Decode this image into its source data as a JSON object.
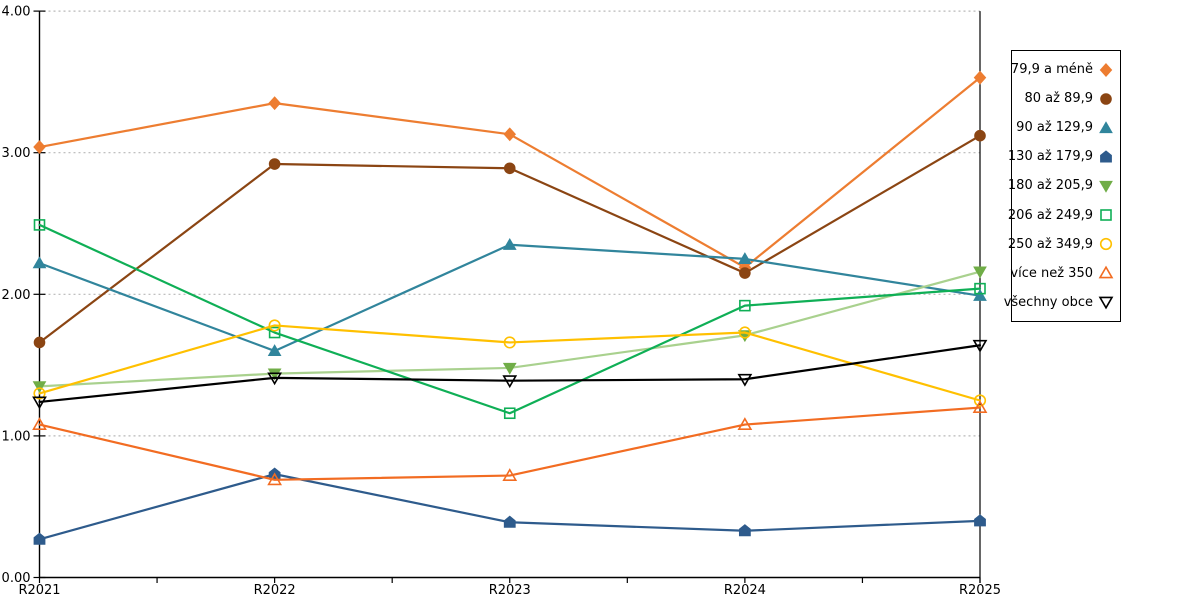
{
  "chart_data": {
    "type": "line",
    "title": "",
    "xlabel": "",
    "ylabel": "",
    "categories": [
      "R2021",
      "R2022",
      "R2023",
      "R2024",
      "R2025"
    ],
    "y_tick_labels": [
      "0.00",
      "1.00",
      "2.00",
      "3.00",
      "4.00"
    ],
    "ylim": [
      0,
      4
    ],
    "grid": "horizontal-dashed",
    "gridline_color": "#b8b8b8",
    "axis_color": "#000000",
    "legend_position": "right",
    "series": [
      {
        "name": "79,9 a méně",
        "marker": "diamond",
        "fill": "filled",
        "color": "#ED7D31",
        "values": [
          3.04,
          3.35,
          3.13,
          2.19,
          3.53
        ]
      },
      {
        "name": "80 až 89,9",
        "marker": "circle",
        "fill": "filled",
        "color": "#8B4513",
        "values": [
          1.66,
          2.92,
          2.89,
          2.15,
          3.12
        ]
      },
      {
        "name": "90 až 129,9",
        "marker": "triangle-up",
        "fill": "filled",
        "color": "#31859C",
        "values": [
          2.22,
          1.6,
          2.35,
          2.25,
          1.99
        ]
      },
      {
        "name": "130 až 179,9",
        "marker": "pentagon",
        "fill": "filled",
        "color": "#2E5B8C",
        "values": [
          0.27,
          0.73,
          0.39,
          0.33,
          0.4
        ]
      },
      {
        "name": "180 až 205,9",
        "marker": "triangle-down",
        "fill": "filled",
        "color": "#70AD47",
        "line_color": "#A9D18E",
        "values": [
          1.35,
          1.44,
          1.48,
          1.71,
          2.16
        ]
      },
      {
        "name": "206 až 249,9",
        "marker": "square",
        "fill": "open",
        "color": "#0FAF56",
        "values": [
          2.49,
          1.73,
          1.16,
          1.92,
          2.04
        ]
      },
      {
        "name": "250 až 349,9",
        "marker": "circle",
        "fill": "open",
        "color": "#FFC000",
        "values": [
          1.3,
          1.78,
          1.66,
          1.73,
          1.25
        ]
      },
      {
        "name": "více než 350",
        "marker": "triangle-up",
        "fill": "open",
        "color": "#F26C22",
        "values": [
          1.08,
          0.69,
          0.72,
          1.08,
          1.2
        ]
      },
      {
        "name": "všechny obce",
        "marker": "triangle-down",
        "fill": "open",
        "color": "#000000",
        "values": [
          1.24,
          1.41,
          1.39,
          1.4,
          1.64
        ]
      }
    ]
  }
}
